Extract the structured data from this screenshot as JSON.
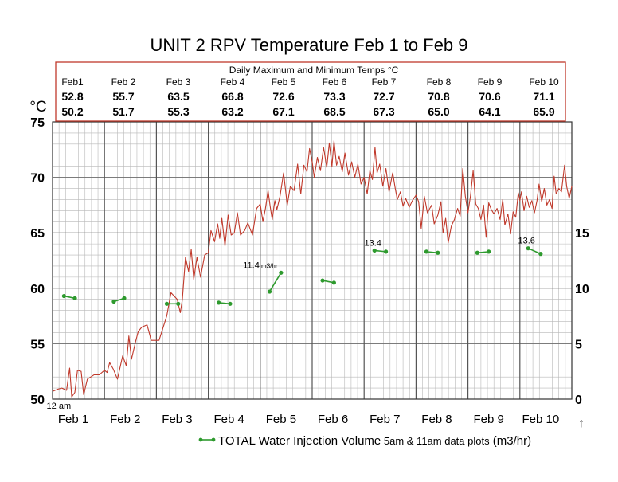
{
  "chart_data": {
    "type": "line",
    "title": "UNIT 2 RPV Temperature Feb 1 to Feb 9",
    "ylabel_left": "°C",
    "ylim_left": [
      50,
      75
    ],
    "yticks_left": [
      50,
      55,
      60,
      65,
      70,
      75
    ],
    "ylim_right": [
      0,
      25
    ],
    "yticks_right": [
      0,
      5,
      10,
      15
    ],
    "xlim_days": [
      0,
      10
    ],
    "x_tick_labels": [
      "Feb 1",
      "Feb 2",
      "Feb 3",
      "Feb 4",
      "Feb 5",
      "Feb 6",
      "Feb 7",
      "Feb 8",
      "Feb 9",
      "Feb 10"
    ],
    "x_axis_arrow": "↑",
    "annotation_12am": "12 am",
    "grid": true,
    "colors": {
      "temperature": "#c0392b",
      "injection": "#2e9a2e",
      "grid_minor": "#b8b8b8",
      "grid_major": "#555555",
      "table_border": "#c0392b"
    },
    "table": {
      "title": "Daily Maximum and Minimum Temps °C",
      "days": [
        "Feb1",
        "Feb 2",
        "Feb 3",
        "Feb 4",
        "Feb 5",
        "Feb 6",
        "Feb 7",
        "Feb 8",
        "Feb 9",
        "Feb 10"
      ],
      "max": [
        "52.8",
        "55.7",
        "63.5",
        "66.8",
        "72.6",
        "73.3",
        "72.7",
        "70.8",
        "70.6",
        "71.1"
      ],
      "min": [
        "50.2",
        "51.7",
        "55.3",
        "63.2",
        "67.1",
        "68.5",
        "67.3",
        "65.0",
        "64.1",
        "65.9"
      ]
    },
    "series": [
      {
        "key": "temperature",
        "axis": "left",
        "points": [
          [
            0.0,
            50.7
          ],
          [
            0.1,
            50.9
          ],
          [
            0.18,
            51.0
          ],
          [
            0.27,
            50.8
          ],
          [
            0.33,
            52.8
          ],
          [
            0.37,
            50.2
          ],
          [
            0.43,
            50.6
          ],
          [
            0.48,
            52.6
          ],
          [
            0.55,
            52.5
          ],
          [
            0.6,
            50.4
          ],
          [
            0.67,
            51.8
          ],
          [
            0.8,
            52.2
          ],
          [
            0.9,
            52.2
          ],
          [
            1.0,
            52.6
          ],
          [
            1.05,
            52.4
          ],
          [
            1.1,
            53.3
          ],
          [
            1.17,
            52.7
          ],
          [
            1.25,
            51.8
          ],
          [
            1.35,
            53.9
          ],
          [
            1.42,
            53.0
          ],
          [
            1.47,
            55.7
          ],
          [
            1.52,
            53.6
          ],
          [
            1.6,
            55.2
          ],
          [
            1.65,
            56.1
          ],
          [
            1.72,
            56.5
          ],
          [
            1.82,
            56.7
          ],
          [
            1.9,
            55.3
          ],
          [
            2.05,
            55.3
          ],
          [
            2.2,
            57.5
          ],
          [
            2.28,
            59.6
          ],
          [
            2.4,
            59.0
          ],
          [
            2.46,
            57.8
          ],
          [
            2.5,
            59.0
          ],
          [
            2.56,
            62.8
          ],
          [
            2.62,
            61.5
          ],
          [
            2.67,
            63.5
          ],
          [
            2.72,
            60.8
          ],
          [
            2.78,
            62.8
          ],
          [
            2.85,
            61.0
          ],
          [
            2.93,
            63.0
          ],
          [
            3.0,
            63.2
          ],
          [
            3.05,
            65.2
          ],
          [
            3.12,
            64.2
          ],
          [
            3.18,
            65.8
          ],
          [
            3.22,
            64.5
          ],
          [
            3.26,
            66.3
          ],
          [
            3.32,
            63.8
          ],
          [
            3.38,
            66.6
          ],
          [
            3.44,
            64.8
          ],
          [
            3.5,
            65.0
          ],
          [
            3.56,
            66.8
          ],
          [
            3.62,
            64.8
          ],
          [
            3.7,
            65.2
          ],
          [
            3.76,
            65.9
          ],
          [
            3.85,
            64.8
          ],
          [
            3.93,
            67.2
          ],
          [
            4.0,
            67.6
          ],
          [
            4.05,
            66.0
          ],
          [
            4.1,
            67.2
          ],
          [
            4.15,
            68.8
          ],
          [
            4.19,
            67.4
          ],
          [
            4.23,
            66.2
          ],
          [
            4.28,
            67.9
          ],
          [
            4.32,
            67.1
          ],
          [
            4.38,
            68.3
          ],
          [
            4.45,
            70.4
          ],
          [
            4.52,
            67.5
          ],
          [
            4.58,
            69.2
          ],
          [
            4.65,
            68.8
          ],
          [
            4.72,
            71.2
          ],
          [
            4.78,
            68.5
          ],
          [
            4.84,
            71.1
          ],
          [
            4.9,
            70.5
          ],
          [
            4.95,
            72.6
          ],
          [
            5.0,
            71.4
          ],
          [
            5.04,
            70.0
          ],
          [
            5.1,
            71.8
          ],
          [
            5.16,
            70.6
          ],
          [
            5.22,
            72.7
          ],
          [
            5.28,
            70.9
          ],
          [
            5.33,
            73.1
          ],
          [
            5.38,
            71.0
          ],
          [
            5.42,
            73.3
          ],
          [
            5.47,
            71.1
          ],
          [
            5.52,
            71.9
          ],
          [
            5.58,
            70.5
          ],
          [
            5.63,
            72.2
          ],
          [
            5.7,
            70.2
          ],
          [
            5.76,
            71.4
          ],
          [
            5.82,
            70.0
          ],
          [
            5.88,
            71.2
          ],
          [
            5.94,
            69.4
          ],
          [
            6.0,
            70.0
          ],
          [
            6.06,
            68.5
          ],
          [
            6.11,
            70.6
          ],
          [
            6.16,
            69.8
          ],
          [
            6.21,
            72.7
          ],
          [
            6.25,
            70.4
          ],
          [
            6.3,
            71.2
          ],
          [
            6.36,
            69.2
          ],
          [
            6.42,
            70.8
          ],
          [
            6.48,
            68.7
          ],
          [
            6.55,
            70.4
          ],
          [
            6.6,
            69.0
          ],
          [
            6.64,
            68.0
          ],
          [
            6.7,
            68.7
          ],
          [
            6.75,
            67.4
          ],
          [
            6.8,
            68.1
          ],
          [
            6.87,
            67.3
          ],
          [
            6.93,
            67.9
          ],
          [
            7.0,
            68.4
          ],
          [
            7.05,
            67.8
          ],
          [
            7.1,
            65.4
          ],
          [
            7.16,
            68.3
          ],
          [
            7.22,
            66.8
          ],
          [
            7.3,
            67.5
          ],
          [
            7.35,
            65.8
          ],
          [
            7.42,
            66.6
          ],
          [
            7.48,
            67.8
          ],
          [
            7.52,
            65.0
          ],
          [
            7.57,
            66.3
          ],
          [
            7.62,
            64.1
          ],
          [
            7.68,
            65.6
          ],
          [
            7.74,
            66.2
          ],
          [
            7.8,
            67.2
          ],
          [
            7.85,
            66.5
          ],
          [
            7.9,
            70.8
          ],
          [
            7.95,
            68.3
          ],
          [
            8.0,
            66.8
          ],
          [
            8.05,
            68.4
          ],
          [
            8.1,
            70.6
          ],
          [
            8.15,
            67.6
          ],
          [
            8.2,
            67.2
          ],
          [
            8.25,
            66.2
          ],
          [
            8.3,
            67.5
          ],
          [
            8.35,
            64.6
          ],
          [
            8.4,
            67.7
          ],
          [
            8.45,
            67.1
          ],
          [
            8.5,
            66.7
          ],
          [
            8.56,
            67.2
          ],
          [
            8.62,
            66.2
          ],
          [
            8.67,
            68.0
          ],
          [
            8.71,
            65.7
          ],
          [
            8.77,
            66.7
          ],
          [
            8.82,
            64.9
          ],
          [
            8.87,
            66.9
          ],
          [
            8.92,
            66.4
          ],
          [
            8.97,
            68.6
          ],
          [
            9.0,
            67.9
          ],
          [
            9.03,
            68.7
          ],
          [
            9.08,
            67.0
          ],
          [
            9.13,
            68.3
          ],
          [
            9.18,
            67.3
          ],
          [
            9.23,
            67.9
          ],
          [
            9.28,
            66.8
          ],
          [
            9.33,
            67.9
          ],
          [
            9.37,
            69.4
          ],
          [
            9.42,
            67.8
          ],
          [
            9.47,
            69.0
          ],
          [
            9.52,
            67.5
          ],
          [
            9.57,
            68.0
          ],
          [
            9.62,
            67.2
          ],
          [
            9.66,
            70.1
          ],
          [
            9.7,
            68.5
          ],
          [
            9.75,
            69.0
          ],
          [
            9.8,
            68.7
          ],
          [
            9.86,
            71.1
          ],
          [
            9.9,
            69.2
          ],
          [
            9.95,
            68.1
          ],
          [
            10.0,
            69.2
          ]
        ]
      },
      {
        "key": "injection",
        "axis": "right",
        "name": "TOTAL Water Injection Volume",
        "segments": [
          [
            [
              0.22,
              9.3
            ],
            [
              0.43,
              9.1
            ]
          ],
          [
            [
              1.18,
              8.8
            ],
            [
              1.38,
              9.1
            ]
          ],
          [
            [
              2.2,
              8.6
            ],
            [
              2.42,
              8.6
            ]
          ],
          [
            [
              3.2,
              8.7
            ],
            [
              3.42,
              8.6
            ]
          ],
          [
            [
              4.18,
              9.7
            ],
            [
              4.4,
              11.4
            ]
          ],
          [
            [
              5.2,
              10.7
            ],
            [
              5.42,
              10.5
            ]
          ],
          [
            [
              6.2,
              13.4
            ],
            [
              6.42,
              13.3
            ]
          ],
          [
            [
              7.2,
              13.3
            ],
            [
              7.42,
              13.2
            ]
          ],
          [
            [
              8.18,
              13.2
            ],
            [
              8.4,
              13.3
            ]
          ],
          [
            [
              9.16,
              13.6
            ],
            [
              9.4,
              13.1
            ]
          ]
        ],
        "labels": [
          {
            "text": "11.4",
            "unit": "m3/hr",
            "at": [
              4.4,
              11.4
            ]
          },
          {
            "text": "13.4",
            "at": [
              6.2,
              13.4
            ]
          },
          {
            "text": "13.6",
            "at": [
              9.16,
              13.6
            ]
          }
        ]
      }
    ],
    "legend": {
      "label": "TOTAL Water Injection Volume",
      "suffix": "5am & 11am data plots",
      "unit": "(m3/hr)",
      "placement": "bottom"
    }
  }
}
